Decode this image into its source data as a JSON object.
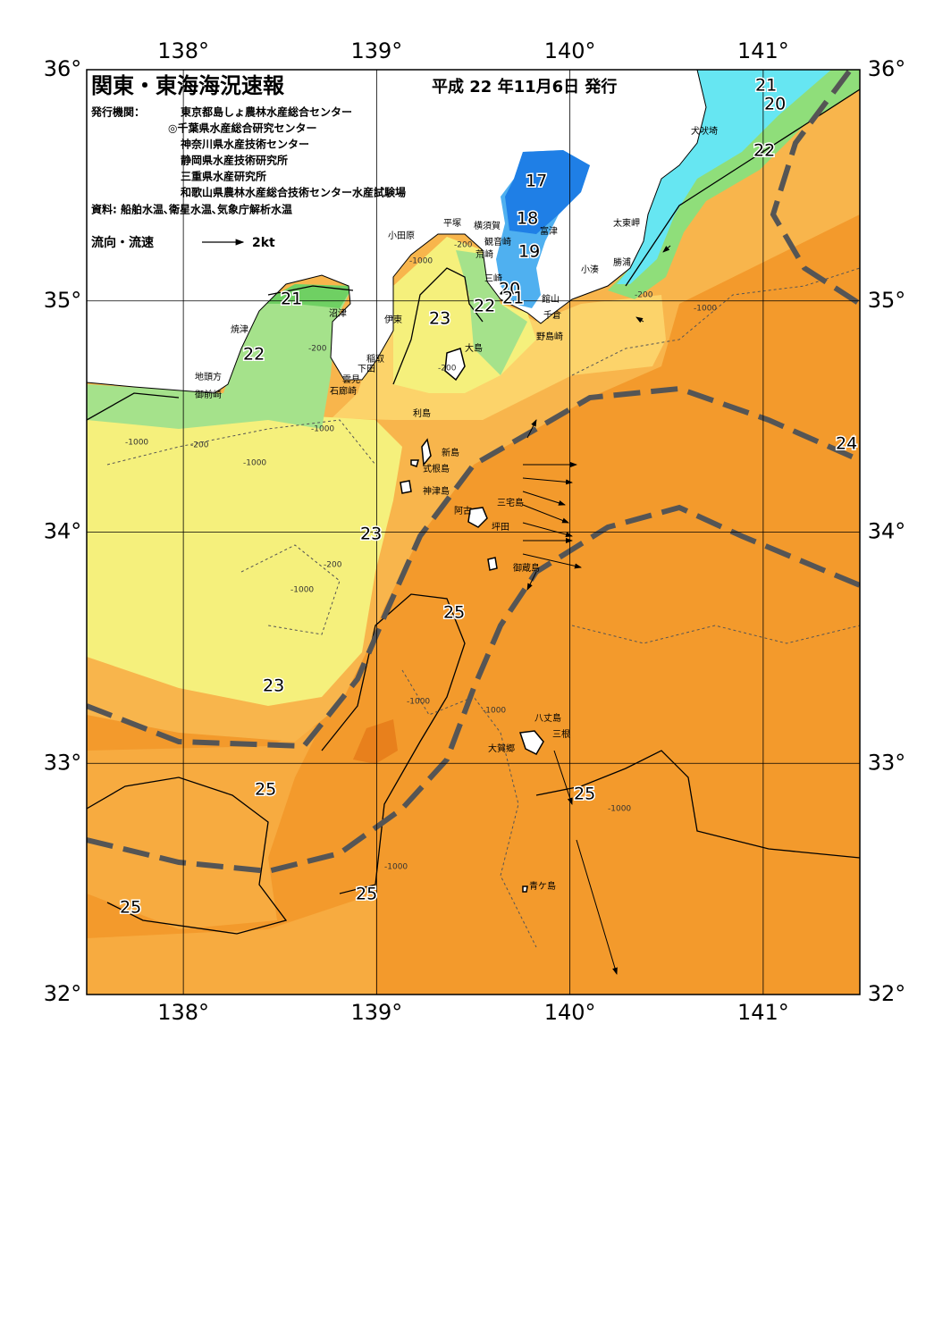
{
  "header": {
    "title": "関東・東海海況速報",
    "date": "平成 22 年11月6日 発行",
    "issuer_label": "発行機関：",
    "issuers": [
      "東京都島しょ農林水産総合センター",
      "◎千葉県水産総合研究センター",
      "神奈川県水産技術センター",
      "静岡県水産技術研究所",
      "三重県水産研究所",
      "和歌山県農林水産総合技術センター水産試験場"
    ],
    "source": "資料: 船舶水温､衛星水温､気象庁解析水温"
  },
  "legend": {
    "label": "流向・流速",
    "scale": "2kt"
  },
  "map": {
    "lonlim": [
      137.5,
      141.5
    ],
    "latlim": [
      32,
      36
    ],
    "lonticks": [
      {
        "value": 138,
        "label": "138°"
      },
      {
        "value": 139,
        "label": "139°"
      },
      {
        "value": 140,
        "label": "140°"
      },
      {
        "value": 141,
        "label": "141°"
      }
    ],
    "latticks": [
      {
        "value": 32,
        "label": "32°"
      },
      {
        "value": 33,
        "label": "33°"
      },
      {
        "value": 34,
        "label": "34°"
      },
      {
        "value": 35,
        "label": "35°"
      },
      {
        "value": 36,
        "label": "36°"
      }
    ]
  },
  "places": [
    "犬吠埼",
    "太東岬",
    "勝浦",
    "小湊",
    "館山",
    "千倉",
    "野島崎",
    "富津",
    "横須賀",
    "観音崎",
    "荒崎",
    "三崎",
    "平塚",
    "小田原",
    "沼津",
    "伊東",
    "焼津",
    "稲取",
    "下田",
    "雲見",
    "石廊崎",
    "地頭方",
    "御前崎",
    "大島",
    "利島",
    "新島",
    "式根島",
    "神津島",
    "三宅島",
    "阿古",
    "坪田",
    "御蔵島",
    "八丈島",
    "三根",
    "大賀郷",
    "青ケ島"
  ],
  "isotherm_labels": [
    21,
    20,
    22,
    17,
    18,
    19,
    20,
    21,
    22,
    21,
    22,
    23,
    23,
    23,
    25,
    25,
    25,
    25,
    25,
    24
  ],
  "depth_labels": [
    -1000,
    -200,
    -1000,
    -200,
    -200,
    -1000,
    -200,
    -1000,
    -200,
    -1000,
    -1000,
    -1000,
    -200,
    -1000,
    -1000,
    -1000
  ]
}
